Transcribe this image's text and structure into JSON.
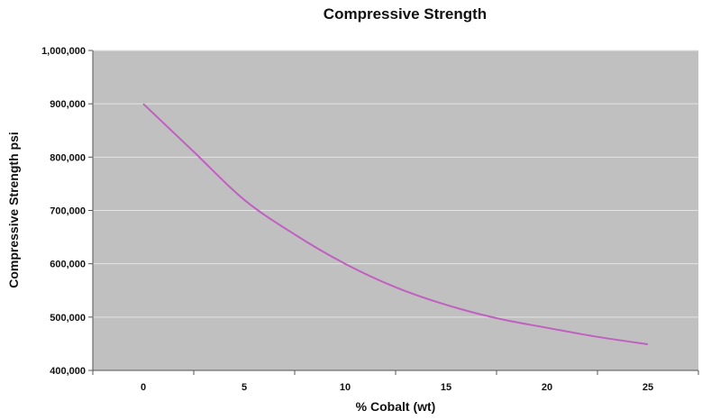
{
  "chart_data": {
    "type": "line",
    "title": "Compressive Strength",
    "xlabel": "% Cobalt (wt)",
    "ylabel": "Compressive Strength  psi",
    "xlim": [
      -2.5,
      27.5
    ],
    "ylim": [
      400000,
      1000000
    ],
    "x_ticks": [
      "0",
      "5",
      "10",
      "15",
      "20",
      "25"
    ],
    "x_tick_values": [
      0,
      5,
      10,
      15,
      20,
      25
    ],
    "y_ticks": [
      "400,000",
      "500,000",
      "600,000",
      "700,000",
      "800,000",
      "900,000",
      "1,000,000"
    ],
    "y_tick_values": [
      400000,
      500000,
      600000,
      700000,
      800000,
      900000,
      1000000
    ],
    "grid": true,
    "colors": {
      "plot_bg": "#c0c0c0",
      "line": "#c060c0",
      "grid": "#e4e4e4"
    },
    "series": [
      {
        "x": [
          0,
          2.5,
          5,
          7.5,
          10,
          12.5,
          15,
          17.5,
          20,
          22.5,
          25
        ],
        "values": [
          900000,
          810000,
          720000,
          655000,
          600000,
          556000,
          523000,
          498000,
          480000,
          463000,
          449000
        ]
      }
    ]
  }
}
